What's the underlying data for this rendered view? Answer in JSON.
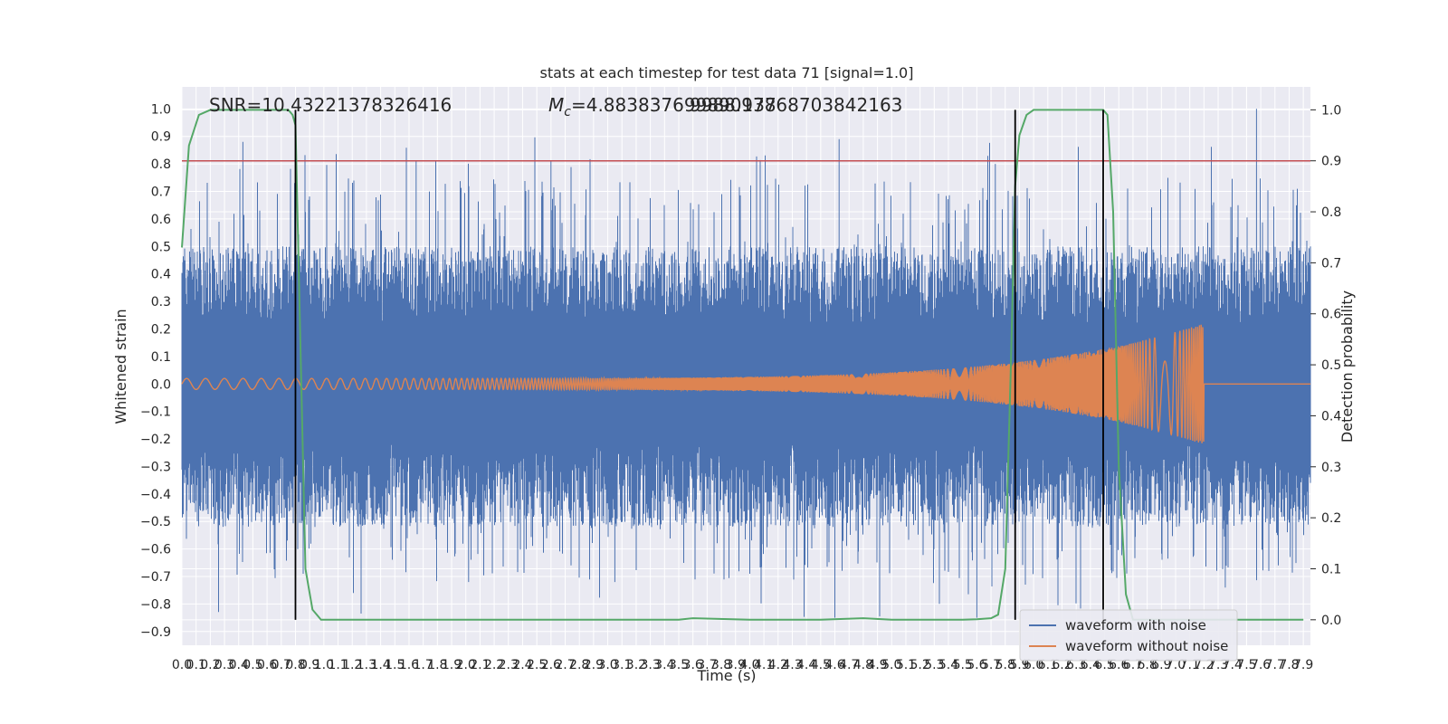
{
  "chart_data": {
    "type": "line",
    "title": "stats at each timestep for test data 71 [signal=1.0]",
    "xlabel": "Time (s)",
    "ylabel": "Whitened strain",
    "y2label": "Detection probability",
    "xlim": [
      0.0,
      7.95
    ],
    "ylim": [
      -0.95,
      1.08
    ],
    "y2lim": [
      -0.05,
      1.045
    ],
    "x_ticks": [
      0.0,
      0.1,
      0.2,
      0.3,
      0.4,
      0.5,
      0.6,
      0.7,
      0.8,
      0.9,
      1.0,
      1.1,
      1.2,
      1.3,
      1.4,
      1.5,
      1.6,
      1.7,
      1.8,
      1.9,
      2.0,
      2.1,
      2.2,
      2.3,
      2.4,
      2.5,
      2.6,
      2.7,
      2.8,
      2.9,
      3.0,
      3.1,
      3.2,
      3.3,
      3.4,
      3.5,
      3.6,
      3.7,
      3.8,
      3.9,
      4.0,
      4.1,
      4.2,
      4.3,
      4.4,
      4.5,
      4.6,
      4.7,
      4.8,
      4.9,
      5.0,
      5.1,
      5.2,
      5.3,
      5.4,
      5.5,
      5.6,
      5.7,
      5.8,
      5.9,
      6.0,
      6.1,
      6.2,
      6.3,
      6.4,
      6.5,
      6.6,
      6.7,
      6.8,
      6.9,
      7.0,
      7.1,
      7.2,
      7.3,
      7.4,
      7.5,
      7.6,
      7.7,
      7.8,
      7.9
    ],
    "x_tick_labels": [
      "0.0",
      "0.1",
      "0.2",
      "0.3",
      "0.4",
      "0.5",
      "0.6",
      "0.7",
      "0.8",
      "0.9",
      "1.0",
      "1.1",
      "1.2",
      "1.3",
      "1.4",
      "1.5",
      "1.6",
      "1.7",
      "1.8",
      "1.9",
      "2.0",
      "2.1",
      "2.2",
      "2.3",
      "2.4",
      "2.5",
      "2.6",
      "2.7",
      "2.8",
      "2.9",
      "3.0",
      "3.1",
      "3.2",
      "3.3",
      "3.4",
      "3.5",
      "3.6",
      "3.7",
      "3.8",
      "3.9",
      "4.0",
      "4.1",
      "4.2",
      "4.3",
      "4.4",
      "4.5",
      "4.6",
      "4.7",
      "4.8",
      "4.9",
      "5.0",
      "5.1",
      "5.2",
      "5.3",
      "5.4",
      "5.5",
      "5.6",
      "5.7",
      "5.8",
      "5.9",
      "6.0",
      "6.1",
      "6.2",
      "6.3",
      "6.4",
      "6.5",
      "6.6",
      "6.7",
      "6.8",
      "6.9",
      "7.0",
      "7.1",
      "7.2",
      "7.3",
      "7.4",
      "7.5",
      "7.6",
      "7.7",
      "7.8",
      "7.9"
    ],
    "y_ticks": [
      -0.9,
      -0.8,
      -0.7,
      -0.6,
      -0.5,
      -0.4,
      -0.3,
      -0.2,
      -0.1,
      0.0,
      0.1,
      0.2,
      0.3,
      0.4,
      0.5,
      0.6,
      0.7,
      0.8,
      0.9,
      1.0
    ],
    "y_tick_labels": [
      "−0.9",
      "−0.8",
      "−0.7",
      "−0.6",
      "−0.5",
      "−0.4",
      "−0.3",
      "−0.2",
      "−0.1",
      "0.0",
      "0.1",
      "0.2",
      "0.3",
      "0.4",
      "0.5",
      "0.6",
      "0.7",
      "0.8",
      "0.9",
      "1.0"
    ],
    "y2_ticks": [
      0.0,
      0.1,
      0.2,
      0.3,
      0.4,
      0.5,
      0.6,
      0.7,
      0.8,
      0.9,
      1.0
    ],
    "y2_tick_labels": [
      "0.0",
      "0.1",
      "0.2",
      "0.3",
      "0.4",
      "0.5",
      "0.6",
      "0.7",
      "0.8",
      "0.9",
      "1.0"
    ],
    "annotations": {
      "snr": "SNR=10.43221378326416",
      "mc_symbol": "M",
      "mc_subscript": "c",
      "mc_value": "=4.883837699890137",
      "mc_overlap": "9988.97868703842163"
    },
    "threshold": {
      "axis": "y2",
      "value": 0.9,
      "color": "#c44e52"
    },
    "vertical_lines": [
      0.8,
      5.87,
      6.49
    ],
    "series": [
      {
        "name": "waveform with noise",
        "color": "#4c72b0",
        "kind": "noise",
        "envelope_typical": 0.45,
        "envelope_peak_min": -0.85,
        "envelope_peak_max": 1.0
      },
      {
        "name": "waveform without noise",
        "color": "#dd8452",
        "kind": "chirp",
        "amp_start": 0.02,
        "amp_peak": 0.22,
        "merger_time": 7.2,
        "post_merger": 0.0
      },
      {
        "name": "Detection probability",
        "color": "#55a868",
        "axis": "y2",
        "x": [
          0.0,
          0.05,
          0.12,
          0.2,
          0.3,
          0.45,
          0.6,
          0.75,
          0.78,
          0.8,
          0.83,
          0.87,
          0.92,
          0.98,
          1.05,
          1.2,
          2.0,
          3.0,
          3.5,
          3.6,
          4.0,
          4.5,
          4.8,
          5.0,
          5.5,
          5.6,
          5.7,
          5.75,
          5.8,
          5.84,
          5.87,
          5.9,
          5.95,
          6.0,
          6.1,
          6.2,
          6.3,
          6.45,
          6.49,
          6.52,
          6.56,
          6.6,
          6.65,
          6.7,
          7.0,
          7.5,
          7.9
        ],
        "y": [
          0.73,
          0.93,
          0.99,
          1.0,
          1.0,
          1.0,
          1.0,
          1.0,
          0.99,
          0.97,
          0.6,
          0.1,
          0.02,
          0.0,
          0.0,
          0.0,
          0.0,
          0.0,
          0.0,
          0.003,
          0.0,
          0.0,
          0.003,
          0.0,
          0.0,
          0.001,
          0.003,
          0.01,
          0.1,
          0.5,
          0.85,
          0.95,
          0.99,
          1.0,
          1.0,
          1.0,
          1.0,
          1.0,
          1.0,
          0.99,
          0.8,
          0.3,
          0.05,
          0.0,
          0.0,
          0.0,
          0.0
        ]
      }
    ],
    "legend": {
      "position": "lower-right",
      "entries": [
        "waveform with noise",
        "waveform without noise"
      ]
    }
  }
}
